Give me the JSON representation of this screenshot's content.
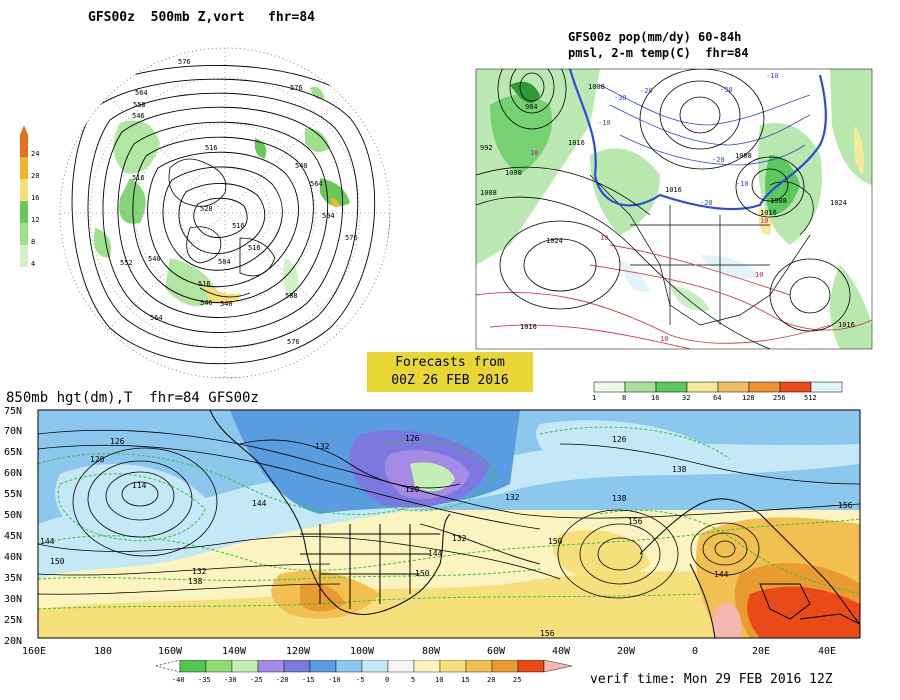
{
  "panel_top_left": {
    "title": "GFS00z  500mb Z,vort   fhr=84",
    "contour_labels": [
      "576",
      "576",
      "564",
      "558",
      "546",
      "516",
      "516",
      "528",
      "516",
      "504",
      "540",
      "516",
      "540",
      "564",
      "576",
      "594",
      "564",
      "576",
      "552",
      "588",
      "546",
      "540",
      "516"
    ],
    "colorbar": {
      "ticks": [
        "24",
        "20",
        "16",
        "12",
        "8",
        "4"
      ],
      "colors": [
        "#e8701c",
        "#f0b428",
        "#f5e07a",
        "#68c85a",
        "#9ee08c",
        "#d4f2c8"
      ]
    }
  },
  "panel_top_right": {
    "title_line1": "GFS00z pop(mm/dy) 60-84h",
    "title_line2": "pmsl, 2-m temp(C)  fhr=84",
    "isobar_labels": [
      "984",
      "1008",
      "992",
      "1000",
      "1008",
      "1024",
      "1016",
      "1016",
      "1008",
      "1016",
      "1024",
      "1008",
      "1016",
      "1016"
    ],
    "temp_labels": [
      "-10",
      "-20",
      "-30",
      "-10",
      "-20",
      "-30",
      "-10",
      "-20",
      "10",
      "10",
      "10",
      "10",
      "10"
    ],
    "colorbar": {
      "ticks": [
        "1",
        "8",
        "16",
        "32",
        "64",
        "128",
        "256",
        "512"
      ],
      "colors": [
        "#eef9e6",
        "#a6e29a",
        "#5ac85a",
        "#f5e99a",
        "#f0c060",
        "#f09030",
        "#ee4a1a",
        "#dff4fb"
      ]
    }
  },
  "stamp": {
    "line1": "Forecasts from",
    "line2": "00Z 26 FEB 2016"
  },
  "panel_bottom": {
    "title": "850mb hgt(dm),T  fhr=84 GFS00z",
    "lat_labels": [
      "75N",
      "70N",
      "65N",
      "60N",
      "55N",
      "50N",
      "45N",
      "40N",
      "35N",
      "30N",
      "25N",
      "20N"
    ],
    "lon_labels": [
      "160E",
      "180",
      "160W",
      "140W",
      "120W",
      "100W",
      "80W",
      "60W",
      "40W",
      "20W",
      "0",
      "20E",
      "40E"
    ],
    "height_labels": [
      "126",
      "120",
      "114",
      "144",
      "138",
      "132",
      "126",
      "120",
      "132",
      "138",
      "144",
      "150",
      "156",
      "150",
      "144",
      "138",
      "132",
      "126",
      "132",
      "156",
      "144",
      "150",
      "156"
    ],
    "colorbar": {
      "ticks": [
        "-40",
        "-35",
        "-30",
        "-25",
        "-20",
        "-15",
        "-10",
        "-5",
        "0",
        "5",
        "10",
        "15",
        "20",
        "25"
      ],
      "colors": [
        "#50c850",
        "#8ede74",
        "#c4efb4",
        "#a58ae6",
        "#7c78e0",
        "#5a9ce0",
        "#8cc8ee",
        "#c4e8f6",
        "#f6f6f6",
        "#fbf3c0",
        "#f6e07c",
        "#f1c050",
        "#e99a30",
        "#ea4a18"
      ]
    },
    "verif_time": "verif time: Mon 29 FEB 2016 12Z"
  }
}
